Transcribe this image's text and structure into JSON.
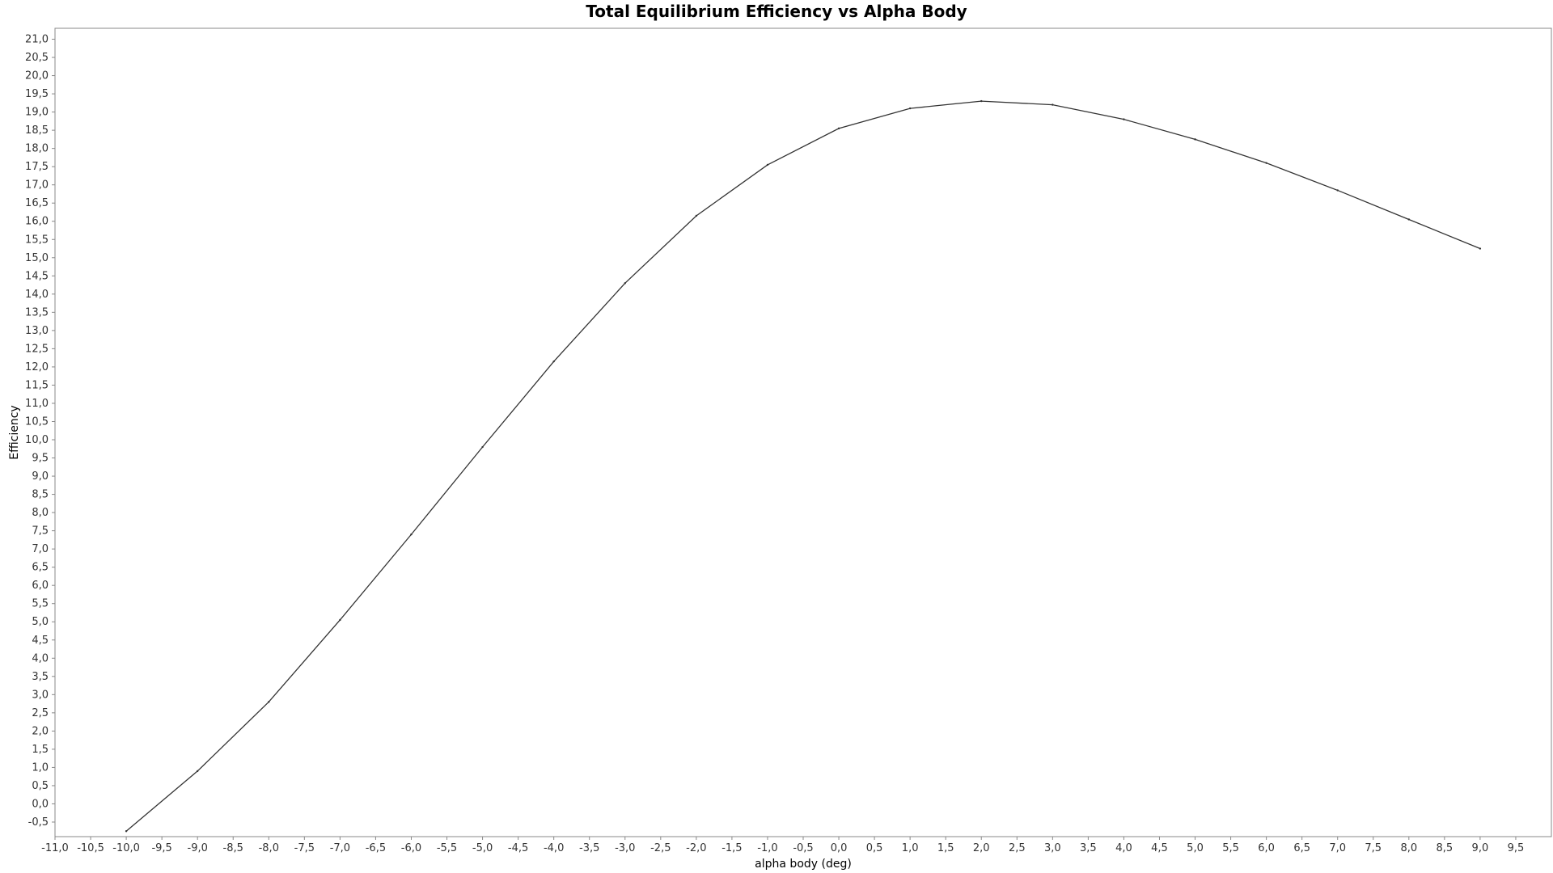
{
  "chart_data": {
    "type": "line",
    "title": "Total Equilibrium Efficiency vs Alpha Body",
    "xlabel": "alpha body (deg)",
    "ylabel": "Efficiency",
    "xlim": [
      -11.0,
      10.0
    ],
    "ylim": [
      -0.9,
      21.3
    ],
    "x_ticks": [
      -11.0,
      -10.5,
      -10.0,
      -9.5,
      -9.0,
      -8.5,
      -8.0,
      -7.5,
      -7.0,
      -6.5,
      -6.0,
      -5.5,
      -5.0,
      -4.5,
      -4.0,
      -3.5,
      -3.0,
      -2.5,
      -2.0,
      -1.5,
      -1.0,
      -0.5,
      0.0,
      0.5,
      1.0,
      1.5,
      2.0,
      2.5,
      3.0,
      3.5,
      4.0,
      4.5,
      5.0,
      5.5,
      6.0,
      6.5,
      7.0,
      7.5,
      8.0,
      8.5,
      9.0,
      9.5
    ],
    "x_tick_labels": [
      "-11,0",
      "-10,5",
      "-10,0",
      "-9,5",
      "-9,0",
      "-8,5",
      "-8,0",
      "-7,5",
      "-7,0",
      "-6,5",
      "-6,0",
      "-5,5",
      "-5,0",
      "-4,5",
      "-4,0",
      "-3,5",
      "-3,0",
      "-2,5",
      "-2,0",
      "-1,5",
      "-1,0",
      "-0,5",
      "0,0",
      "0,5",
      "1,0",
      "1,5",
      "2,0",
      "2,5",
      "3,0",
      "3,5",
      "4,0",
      "4,5",
      "5,0",
      "5,5",
      "6,0",
      "6,5",
      "7,0",
      "7,5",
      "8,0",
      "8,5",
      "9,0",
      "9,5"
    ],
    "y_ticks": [
      -0.5,
      0.0,
      0.5,
      1.0,
      1.5,
      2.0,
      2.5,
      3.0,
      3.5,
      4.0,
      4.5,
      5.0,
      5.5,
      6.0,
      6.5,
      7.0,
      7.5,
      8.0,
      8.5,
      9.0,
      9.5,
      10.0,
      10.5,
      11.0,
      11.5,
      12.0,
      12.5,
      13.0,
      13.5,
      14.0,
      14.5,
      15.0,
      15.5,
      16.0,
      16.5,
      17.0,
      17.5,
      18.0,
      18.5,
      19.0,
      19.5,
      20.0,
      20.5,
      21.0
    ],
    "y_tick_labels": [
      "-0,5",
      "0,0",
      "0,5",
      "1,0",
      "1,5",
      "2,0",
      "2,5",
      "3,0",
      "3,5",
      "4,0",
      "4,5",
      "5,0",
      "5,5",
      "6,0",
      "6,5",
      "7,0",
      "7,5",
      "8,0",
      "8,5",
      "9,0",
      "9,5",
      "10,0",
      "10,5",
      "11,0",
      "11,5",
      "12,0",
      "12,5",
      "13,0",
      "13,5",
      "14,0",
      "14,5",
      "15,0",
      "15,5",
      "16,0",
      "16,5",
      "17,0",
      "17,5",
      "18,0",
      "18,5",
      "19,0",
      "19,5",
      "20,0",
      "20,5",
      "21,0"
    ],
    "grid": true,
    "legend": "none",
    "series": [
      {
        "x": [
          -10.0,
          -9.0,
          -8.0,
          -7.0,
          -6.0,
          -5.0,
          -4.0,
          -3.0,
          -2.0,
          -1.0,
          0.0,
          1.0,
          2.0,
          3.0,
          4.0,
          5.0,
          6.0,
          7.0,
          8.0,
          9.0
        ],
        "y": [
          -0.75,
          0.9,
          2.8,
          5.05,
          7.4,
          9.8,
          12.15,
          14.3,
          16.15,
          17.55,
          18.55,
          19.1,
          19.3,
          19.2,
          18.8,
          18.25,
          17.6,
          16.85,
          16.05,
          15.25
        ]
      }
    ],
    "colors": {
      "line": "#333333",
      "grid": "#d8d8d8",
      "frame": "#888888",
      "plot_background": "#ffffff"
    }
  }
}
